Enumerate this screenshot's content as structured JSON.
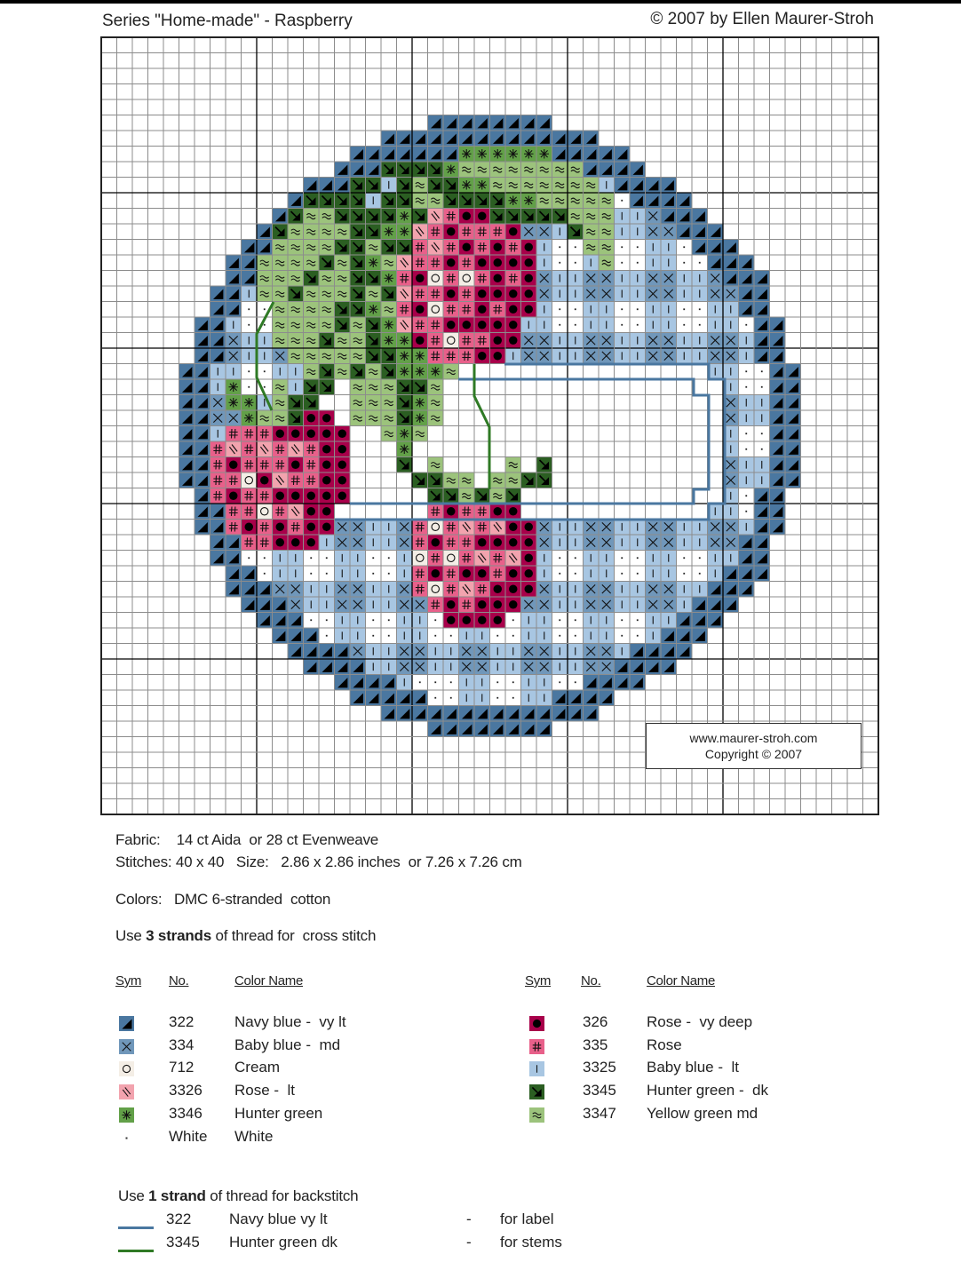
{
  "header": {
    "title": "Series \"Home-made\" - Raspberry",
    "copyright": "© 2007 by Ellen Maurer-Stroh"
  },
  "watermark": {
    "url": "www.maurer-stroh.com",
    "copyright": "Copyright © 2007"
  },
  "info": {
    "fabric": "Fabric:    14 ct Aida  or 28 ct Evenweave",
    "stitches": "Stitches: 40 x 40   Size:   2.86 x 2.86 inches  or 7.26 x 7.26 cm",
    "colors": "Colors:   DMC 6-stranded  cotton",
    "strands_pre": "Use ",
    "strands_bold": "3 strands",
    "strands_post": " of thread for  cross stitch"
  },
  "legend_headers": {
    "sym": "Sym",
    "no": "No.",
    "name": "Color Name"
  },
  "legend": [
    {
      "key": "N",
      "no": "322",
      "name": "Navy blue -  vy lt",
      "color": "#4a77a0",
      "symbol": "triangle"
    },
    {
      "key": "X",
      "no": "334",
      "name": "Baby blue -  md",
      "color": "#7097ba",
      "symbol": "cross"
    },
    {
      "key": "O",
      "no": "712",
      "name": "Cream",
      "color": "#f4eee6",
      "symbol": "circle"
    },
    {
      "key": "S",
      "no": "3326",
      "name": "Rose -  lt",
      "color": "#f2a3ae",
      "symbol": "double-slash"
    },
    {
      "key": "G",
      "no": "3346",
      "name": "Hunter green",
      "color": "#62a048",
      "symbol": "asterisk"
    },
    {
      "key": "W",
      "no": "White",
      "name": "White",
      "color": "#ffffff",
      "symbol": "dot"
    },
    {
      "key": "D",
      "no": "326",
      "name": "Rose -  vy deep",
      "color": "#a8004a",
      "symbol": "filled-circle"
    },
    {
      "key": "R",
      "no": "335",
      "name": "Rose",
      "color": "#e8608a",
      "symbol": "hash"
    },
    {
      "key": "L",
      "no": "3325",
      "name": "Baby blue -  lt",
      "color": "#a8c6e2",
      "symbol": "bar"
    },
    {
      "key": "K",
      "no": "3345",
      "name": "Hunter green -  dk",
      "color": "#2b5e22",
      "symbol": "arrow"
    },
    {
      "key": "Y",
      "no": "3347",
      "name": "Yellow green md",
      "color": "#9cc37c",
      "symbol": "approx"
    }
  ],
  "backstitch": {
    "intro_pre": "Use ",
    "intro_bold": "1 strand",
    "intro_post": " of thread for backstitch",
    "items": [
      {
        "no": "322",
        "name": "Navy blue vy lt",
        "dash": "-",
        "use": "for label",
        "color": "#4a77a0"
      },
      {
        "no": "3345",
        "name": "Hunter green dk",
        "dash": "-",
        "use": "for stems",
        "color": "#2f7a25"
      }
    ]
  },
  "pattern": {
    "stitches_w": 40,
    "stitches_h": 40,
    "rows": [
      "................NNNNNNNN................",
      ".............NNNNNNNNNNNNNN.............",
      "...........NNNNNNNGGGGGGNNNNN...........",
      "..........NNNKKKKGYYYYYYYYNNNN..........",
      "........NNNKKLKYKKGGYYYYYYYLNNNN........",
      ".......NKKKKLKKYYKKKKGGYYYYYWNNNN.......",
      "......NKYYKKKKGKSRDDKKKKKYYYLLXNNN......",
      ".....NKYYYYKKGGSRDRRRDXXLKYYLLXXNNN.....",
      "....NNYYYYKKYKKRSRDRDRDLWWYYWWLLWNNN....",
      "...NNYYYYKYKGYSRRDRDDDDLWWLYWWLLWWNNN...",
      "...NNYYYKYYKKGRDORORDRDXLLXXLLXXLLXNNN..",
      "..NNLYYKYYYKYKSRRDRDDDDXLLXXLLXXLLXXNN..",
      "..NNWWYYYYKKGYRDORRDRDDLWWLLWWLLWWLLNN..",
      ".NNLWWYYYYKYKGSRRDDDDDLLWWLLWWLLWWLLWNN.",
      ".NNXLLYYYKYYKGGDRORRDDXXLLXXLLXXLLXXLNN.",
      ".NNXLLXYYYYYKKGGRRRDDLXXLLXXLLXXLLXXLNN.",
      "NNLLWWLLYKYKYKGGGY................LLWWNN",
      "NNLGWWYLKK.YYYKKY..................LWWNN",
      "NNXGGLYKK..YYYKGY..................XLLNN",
      "NNXXGYYKDD.YYYKGY..................XLLNN",
      "NNLRRRDDDDD..YGY...................LWWNN",
      "NNRSRSRSRDD...G....................LWWNN",
      "NNRDRRRDRDD...K.Y....Y.K...........XLLNN",
      "NNRRODSRRDD....KKYY.YYKK...........XLLNN",
      ".NRDRRDDDDD.....KKYKYK.............LWNN.",
      ".NNRRORSDD......RDRRDD............LLWNN.",
      ".NNRDRDRDDXXLLXRORSRSDDXLLXXLLXXLLXXLNN.",
      "..NNRRDDDLXXLLXRDRRDDDDXLLXXLLXXLLXXNN..",
      "..NNWWLLWWLLWWLORORSRSDLWWLLWWLLWWLLNN..",
      "...NNWLLWWLLWWLRDRDDRDDLWWLLWWLLWWLNNN..",
      "...NNNXXLLXXLLXRORSRDDDXLLXXLLXXLLNNN...",
      "....NNNXLLXXLLXXRDRDDDXXLLXXLLXXLNNN....",
      ".....NNNWWLLWWLLWDDDDWLLWWLLWWLLNNN.....",
      "......NNNWLLWWLLWWLLWWLLWWLLWWLNNN......",
      ".......NNNNXLLXXLLXXLLXXLLXXLNNNN.......",
      "........NNNNLLXXLLXXLLXXLLXXNNNN........",
      "..........NNNNLWWWLLWWLLWWNNNN..........",
      "...........NNNNNWWLLWWLLNNNN............",
      ".............NNNNNNNNNNNNNN.............",
      "................NNNNNNNN................"
    ]
  }
}
